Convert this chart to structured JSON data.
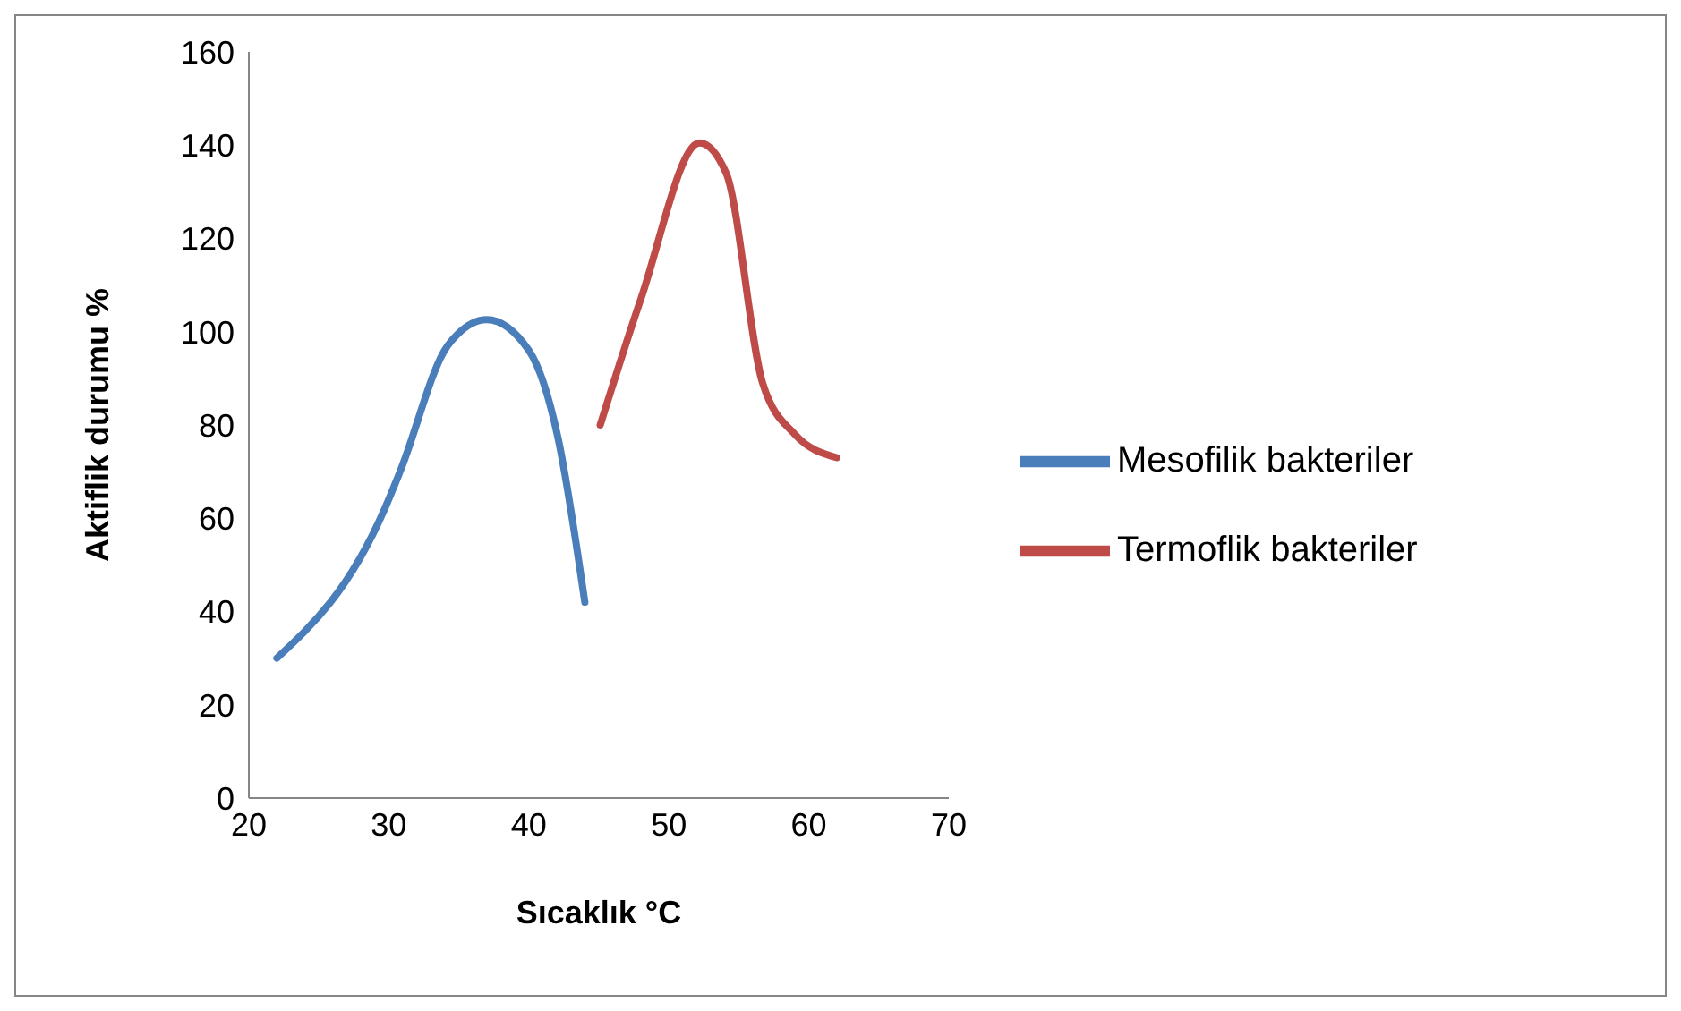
{
  "chart_data": {
    "type": "line",
    "xlabel": "Sıcaklık °C",
    "ylabel": "Aktiflik durumu %",
    "xlim": [
      20,
      70
    ],
    "xticks": [
      20,
      30,
      40,
      50,
      60,
      70
    ],
    "ylim": [
      0,
      160
    ],
    "yticks": [
      0,
      20,
      40,
      60,
      80,
      100,
      120,
      140,
      160
    ],
    "grid": false,
    "legend": "right",
    "marker": "none",
    "line_style": "solid",
    "series": [
      {
        "name": "Mesofilik bakteriler",
        "color": "#4a7ebb",
        "x": [
          22,
          29.7,
          30.8,
          34.2,
          37,
          40,
          42.1,
          44
        ],
        "values": [
          30,
          62,
          70,
          97,
          102.6,
          96,
          77,
          42
        ]
      },
      {
        "name": "Termoflik bakteriler",
        "color": "#be4b48",
        "x": [
          45.1,
          48,
          52.2,
          54.1,
          56.7,
          59,
          62
        ],
        "values": [
          80,
          107,
          140.5,
          134,
          89,
          78,
          73
        ]
      }
    ]
  }
}
